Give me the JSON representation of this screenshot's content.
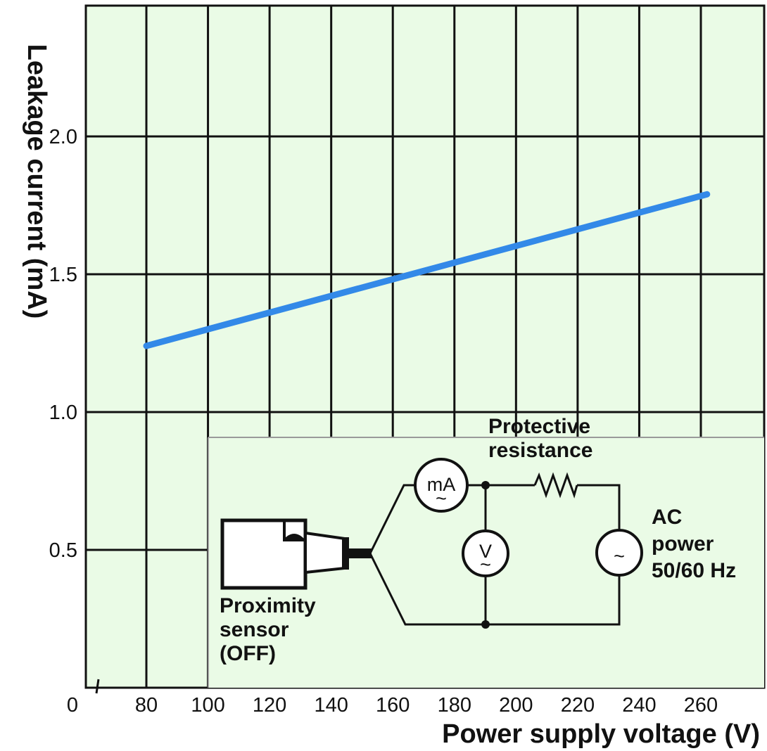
{
  "chart_data": {
    "type": "line",
    "title": "",
    "xlabel": "Power supply voltage (V)",
    "ylabel": "Leakage current (mA)",
    "x_origin_label": "0",
    "x_ticks": [
      80,
      100,
      120,
      140,
      160,
      180,
      200,
      220,
      240,
      260
    ],
    "x_tick_labels": [
      "80",
      "100",
      "120",
      "140",
      "160",
      "180",
      "200",
      "220",
      "240",
      "260"
    ],
    "y_ticks": [
      0.5,
      1.0,
      1.5,
      2.0
    ],
    "y_tick_labels": [
      "0.5",
      "1.0",
      "1.5",
      "2.0"
    ],
    "xlim": [
      60,
      280
    ],
    "ylim": [
      0,
      2.5
    ],
    "grid": true,
    "series": [
      {
        "x": [
          80,
          262
        ],
        "y": [
          1.24,
          1.79
        ]
      }
    ],
    "colors": {
      "background": "#eafbe6",
      "grid": "#111111",
      "line": "#3389e8"
    }
  },
  "inset": {
    "protective_label": [
      "Protective",
      "resistance"
    ],
    "ac_label": [
      "AC",
      "power",
      "50/60 Hz"
    ],
    "sensor_label": [
      "Proximity",
      "sensor",
      "(OFF)"
    ],
    "ma_meter": "mA",
    "v_meter": "V",
    "ac_symbol": "~",
    "meter_ac_mark": "~",
    "icons": [
      "ammeter-icon",
      "voltmeter-icon",
      "resistor-icon",
      "ac-source-icon",
      "proximity-sensor-icon"
    ]
  }
}
